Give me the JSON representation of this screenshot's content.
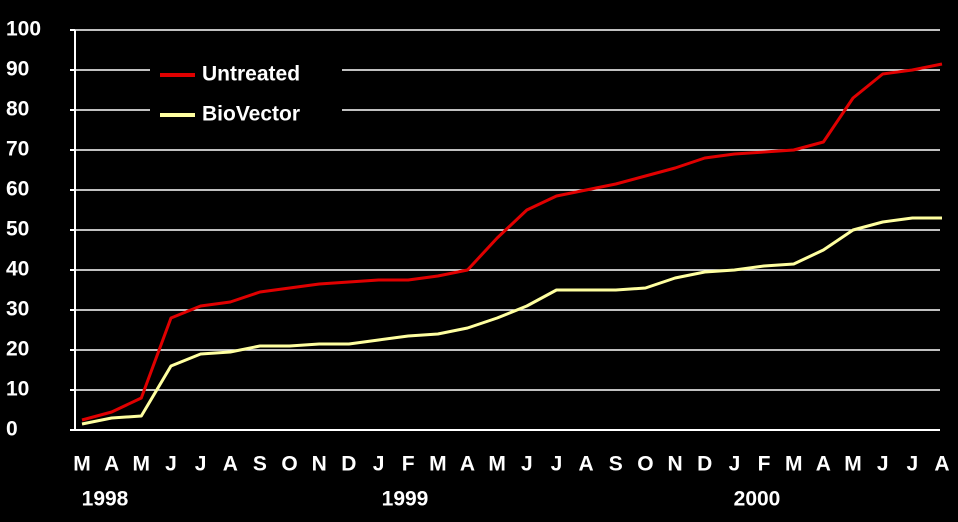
{
  "chart_data": {
    "type": "line",
    "categories": [
      "M",
      "A",
      "M",
      "J",
      "J",
      "A",
      "S",
      "O",
      "N",
      "D",
      "J",
      "F",
      "M",
      "A",
      "M",
      "J",
      "J",
      "A",
      "S",
      "O",
      "N",
      "D",
      "J",
      "F",
      "M",
      "A",
      "M",
      "J",
      "J",
      "A"
    ],
    "years": [
      "1998",
      "1999",
      "2000"
    ],
    "series": [
      {
        "name": "Untreated",
        "color": "#e00000",
        "values": [
          2.5,
          4.5,
          8,
          28,
          31,
          32,
          34.5,
          35.5,
          36.5,
          37,
          37.5,
          37.5,
          38.5,
          40,
          48,
          55,
          58.5,
          60,
          61.5,
          63.5,
          65.5,
          68,
          69,
          69.5,
          70,
          72,
          83,
          89,
          90,
          91.5
        ]
      },
      {
        "name": "BioVector",
        "color": "#ffffa0",
        "values": [
          1.5,
          3,
          3.5,
          16,
          19,
          19.5,
          21,
          21,
          21.5,
          21.5,
          22.5,
          23.5,
          24,
          25.5,
          28,
          31,
          35,
          35,
          35,
          35.5,
          38,
          39.5,
          40,
          41,
          41.5,
          45,
          50,
          52,
          53,
          53
        ]
      }
    ],
    "ylim": [
      0,
      100
    ],
    "yticks": [
      0,
      10,
      20,
      30,
      40,
      50,
      60,
      70,
      80,
      90,
      100
    ],
    "grid": true,
    "legend": "upper left"
  }
}
